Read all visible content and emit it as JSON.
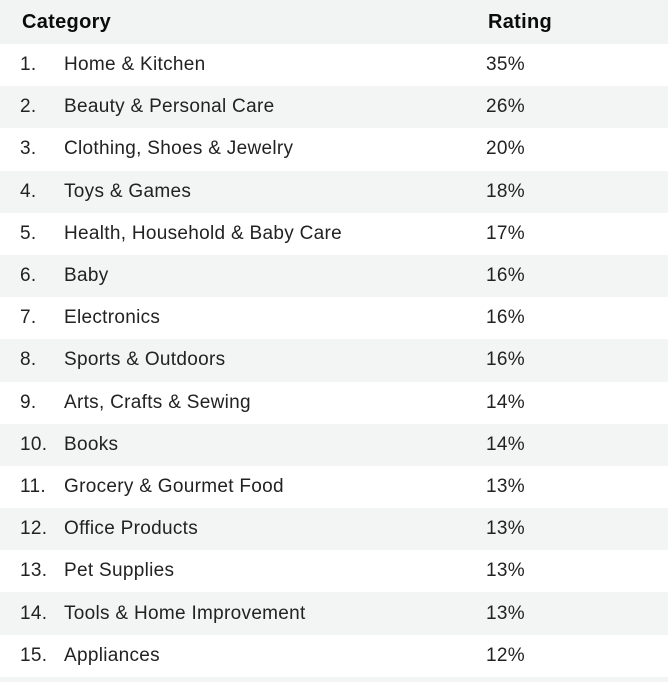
{
  "header": {
    "category_label": "Category",
    "rating_label": "Rating"
  },
  "table": {
    "rows": [
      {
        "rank": "1.",
        "category": "Home & Kitchen",
        "rating": "35%"
      },
      {
        "rank": "2.",
        "category": "Beauty & Personal Care",
        "rating": "26%"
      },
      {
        "rank": "3.",
        "category": "Clothing, Shoes & Jewelry",
        "rating": "20%"
      },
      {
        "rank": "4.",
        "category": "Toys & Games",
        "rating": "18%"
      },
      {
        "rank": "5.",
        "category": "Health, Household & Baby Care",
        "rating": "17%"
      },
      {
        "rank": "6.",
        "category": "Baby",
        "rating": "16%"
      },
      {
        "rank": "7.",
        "category": "Electronics",
        "rating": "16%"
      },
      {
        "rank": "8.",
        "category": "Sports & Outdoors",
        "rating": "16%"
      },
      {
        "rank": "9.",
        "category": "Arts, Crafts & Sewing",
        "rating": "14%"
      },
      {
        "rank": "10.",
        "category": "Books",
        "rating": "14%"
      },
      {
        "rank": "11.",
        "category": "Grocery & Gourmet Food",
        "rating": "13%"
      },
      {
        "rank": "12.",
        "category": "Office Products",
        "rating": "13%"
      },
      {
        "rank": "13.",
        "category": "Pet Supplies",
        "rating": "13%"
      },
      {
        "rank": "14.",
        "category": "Tools & Home Improvement",
        "rating": "13%"
      },
      {
        "rank": "15.",
        "category": "Appliances",
        "rating": "12%"
      }
    ]
  },
  "colors": {
    "stripe": "#f3f4f4",
    "header_bg": "#f2f3f3",
    "text": "#222222",
    "header_text": "#0b0b0b"
  },
  "chart_data": {
    "type": "table",
    "title": "",
    "columns": [
      "Category",
      "Rating"
    ],
    "rows": [
      [
        "Home & Kitchen",
        "35%"
      ],
      [
        "Beauty & Personal Care",
        "26%"
      ],
      [
        "Clothing, Shoes & Jewelry",
        "20%"
      ],
      [
        "Toys & Games",
        "18%"
      ],
      [
        "Health, Household & Baby Care",
        "17%"
      ],
      [
        "Baby",
        "16%"
      ],
      [
        "Electronics",
        "16%"
      ],
      [
        "Sports & Outdoors",
        "16%"
      ],
      [
        "Arts, Crafts & Sewing",
        "14%"
      ],
      [
        "Books",
        "14%"
      ],
      [
        "Grocery & Gourmet Food",
        "13%"
      ],
      [
        "Office Products",
        "13%"
      ],
      [
        "Pet Supplies",
        "13%"
      ],
      [
        "Tools & Home Improvement",
        "13%"
      ],
      [
        "Appliances",
        "12%"
      ]
    ],
    "values_numeric_percent": [
      35,
      26,
      20,
      18,
      17,
      16,
      16,
      16,
      14,
      14,
      13,
      13,
      13,
      13,
      12
    ],
    "layout_hints": {
      "zebra_striping": true,
      "header_background": "#f2f3f3",
      "stripe_background": "#f3f4f4",
      "grid": false
    }
  }
}
